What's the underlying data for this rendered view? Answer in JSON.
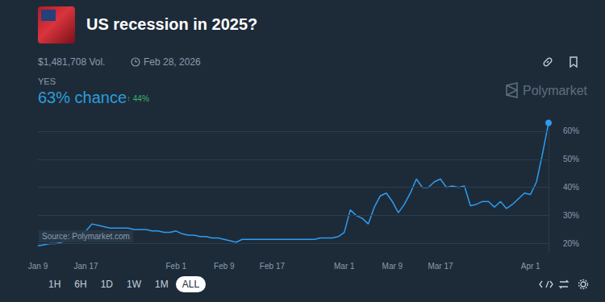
{
  "header": {
    "title": "US recession in 2025?",
    "volume": "$1,481,708 Vol.",
    "end_date": "Feb 28, 2026",
    "outcome": "YES",
    "chance": "63% chance",
    "change": "↑ 44%",
    "brand": "Polymarket"
  },
  "chart_data": {
    "type": "line",
    "color": "#2e9cf0",
    "categories": [
      "Jan 9",
      null,
      null,
      null,
      null,
      null,
      null,
      null,
      "Jan 17",
      null,
      null,
      null,
      null,
      null,
      null,
      null,
      null,
      null,
      null,
      null,
      null,
      null,
      null,
      "Feb 1",
      null,
      null,
      null,
      null,
      null,
      null,
      null,
      "Feb 9",
      null,
      null,
      null,
      null,
      null,
      null,
      null,
      "Feb 17",
      null,
      null,
      null,
      null,
      null,
      null,
      null,
      null,
      null,
      null,
      null,
      "Mar 1",
      null,
      null,
      null,
      null,
      null,
      null,
      null,
      "Mar 9",
      null,
      null,
      null,
      null,
      null,
      null,
      null,
      "Mar 17",
      null,
      null,
      null,
      null,
      null,
      null,
      null,
      null,
      null,
      null,
      null,
      null,
      null,
      null,
      "Apr 1",
      null,
      null,
      null
    ],
    "values": [
      19.2,
      19.6,
      20,
      20,
      20.5,
      22,
      22.5,
      23,
      24.5,
      27,
      26.5,
      26,
      25.5,
      25.5,
      25.5,
      25.5,
      25,
      25,
      25,
      24.5,
      24.5,
      24,
      24,
      24.5,
      23.5,
      23,
      23,
      22.5,
      22.5,
      22,
      22,
      21.5,
      21,
      20.5,
      21.5,
      21.5,
      21.5,
      21.5,
      21.5,
      21.5,
      21.5,
      21.5,
      21.5,
      21.5,
      21.5,
      21.5,
      21.5,
      22,
      22,
      22,
      22.5,
      24,
      32,
      30,
      29,
      27,
      33,
      37,
      38,
      35,
      31,
      34,
      38,
      43,
      40,
      40,
      42,
      43,
      40,
      40.5,
      40,
      40.5,
      33.5,
      34,
      35,
      35,
      33,
      35,
      32.5,
      34,
      36,
      38,
      37.5,
      42,
      52,
      63
    ],
    "ylim": [
      17,
      64
    ],
    "yticks": [
      {
        "value": 20,
        "label": "20%"
      },
      {
        "value": 30,
        "label": "30%"
      },
      {
        "value": 40,
        "label": "40%"
      },
      {
        "value": 50,
        "label": "50%"
      },
      {
        "value": 60,
        "label": "60%"
      }
    ],
    "grid": true,
    "source": "Source: Polymarket.com"
  },
  "controls": [
    "1H",
    "6H",
    "1D",
    "1W",
    "1M",
    "ALL"
  ],
  "active_control": "ALL"
}
